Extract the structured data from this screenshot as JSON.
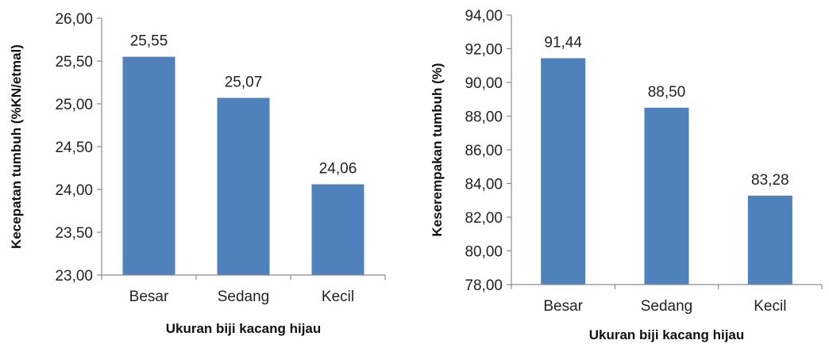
{
  "chart_data": [
    {
      "type": "bar",
      "categories": [
        "Besar",
        "Sedang",
        "Kecil"
      ],
      "values": [
        25.55,
        25.07,
        24.06
      ],
      "data_labels": [
        "25,55",
        "25,07",
        "24,06"
      ],
      "xlabel": "Ukuran biji kacang hijau",
      "ylabel": "Kecepatan tumbuh  (%KN/etmal)",
      "ylim": [
        23.0,
        26.0
      ],
      "yticks": [
        23.0,
        23.5,
        24.0,
        24.5,
        25.0,
        25.5,
        26.0
      ],
      "ytick_labels": [
        "23,00",
        "23,50",
        "24,00",
        "24,50",
        "25,00",
        "25,50",
        "26,00"
      ],
      "bar_color": "#4f81bd",
      "grid": false
    },
    {
      "type": "bar",
      "categories": [
        "Besar",
        "Sedang",
        "Kecil"
      ],
      "values": [
        91.44,
        88.5,
        83.28
      ],
      "data_labels": [
        "91,44",
        "88,50",
        "83,28"
      ],
      "xlabel": "Ukuran biji kacang hijau",
      "ylabel": "Keserempakan tumbuh (%)",
      "ylim": [
        78.0,
        94.0
      ],
      "yticks": [
        78.0,
        80.0,
        82.0,
        84.0,
        86.0,
        88.0,
        90.0,
        92.0,
        94.0
      ],
      "ytick_labels": [
        "78,00",
        "80,00",
        "82,00",
        "84,00",
        "86,00",
        "88,00",
        "90,00",
        "92,00",
        "94,00"
      ],
      "bar_color": "#4f81bd",
      "grid": false
    }
  ]
}
